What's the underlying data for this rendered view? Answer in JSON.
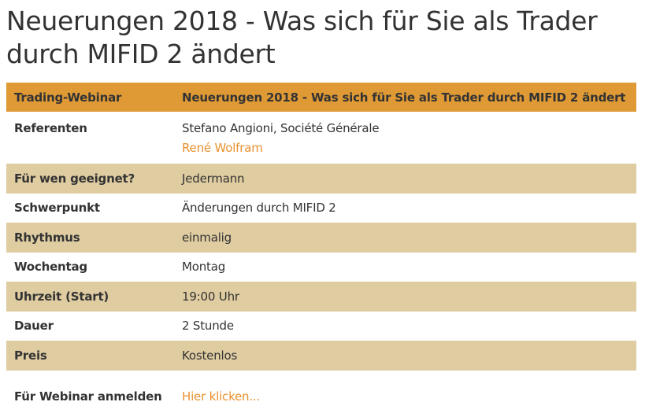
{
  "title": "Neuerungen 2018 - Was sich für Sie als Trader durch MIFID 2 ändert",
  "table": {
    "header": {
      "label": "Trading-Webinar",
      "value": "Neuerungen 2018 - Was sich für Sie als Trader durch MIFID 2 ändert"
    },
    "referenten": {
      "label": "Referenten",
      "speaker1": "Stefano Angioni, Société Générale",
      "speaker2": "René Wolfram"
    },
    "rows": [
      {
        "label": "Für wen geeignet?",
        "value": "Jedermann"
      },
      {
        "label": "Schwerpunkt",
        "value": "Änderungen durch MIFID 2"
      },
      {
        "label": "Rhythmus",
        "value": "einmalig"
      },
      {
        "label": "Wochentag",
        "value": "Montag"
      },
      {
        "label": "Uhrzeit (Start)",
        "value": "19:00 Uhr"
      },
      {
        "label": "Dauer",
        "value": "2 Stunde"
      },
      {
        "label": "Preis",
        "value": "Kostenlos"
      }
    ],
    "register": {
      "label": "Für Webinar anmelden",
      "link": "Hier klicken..."
    }
  },
  "colors": {
    "header_bg": "#e09a35",
    "shaded_row_bg": "#dfcca1",
    "link": "#e8912d",
    "text": "#333333"
  }
}
